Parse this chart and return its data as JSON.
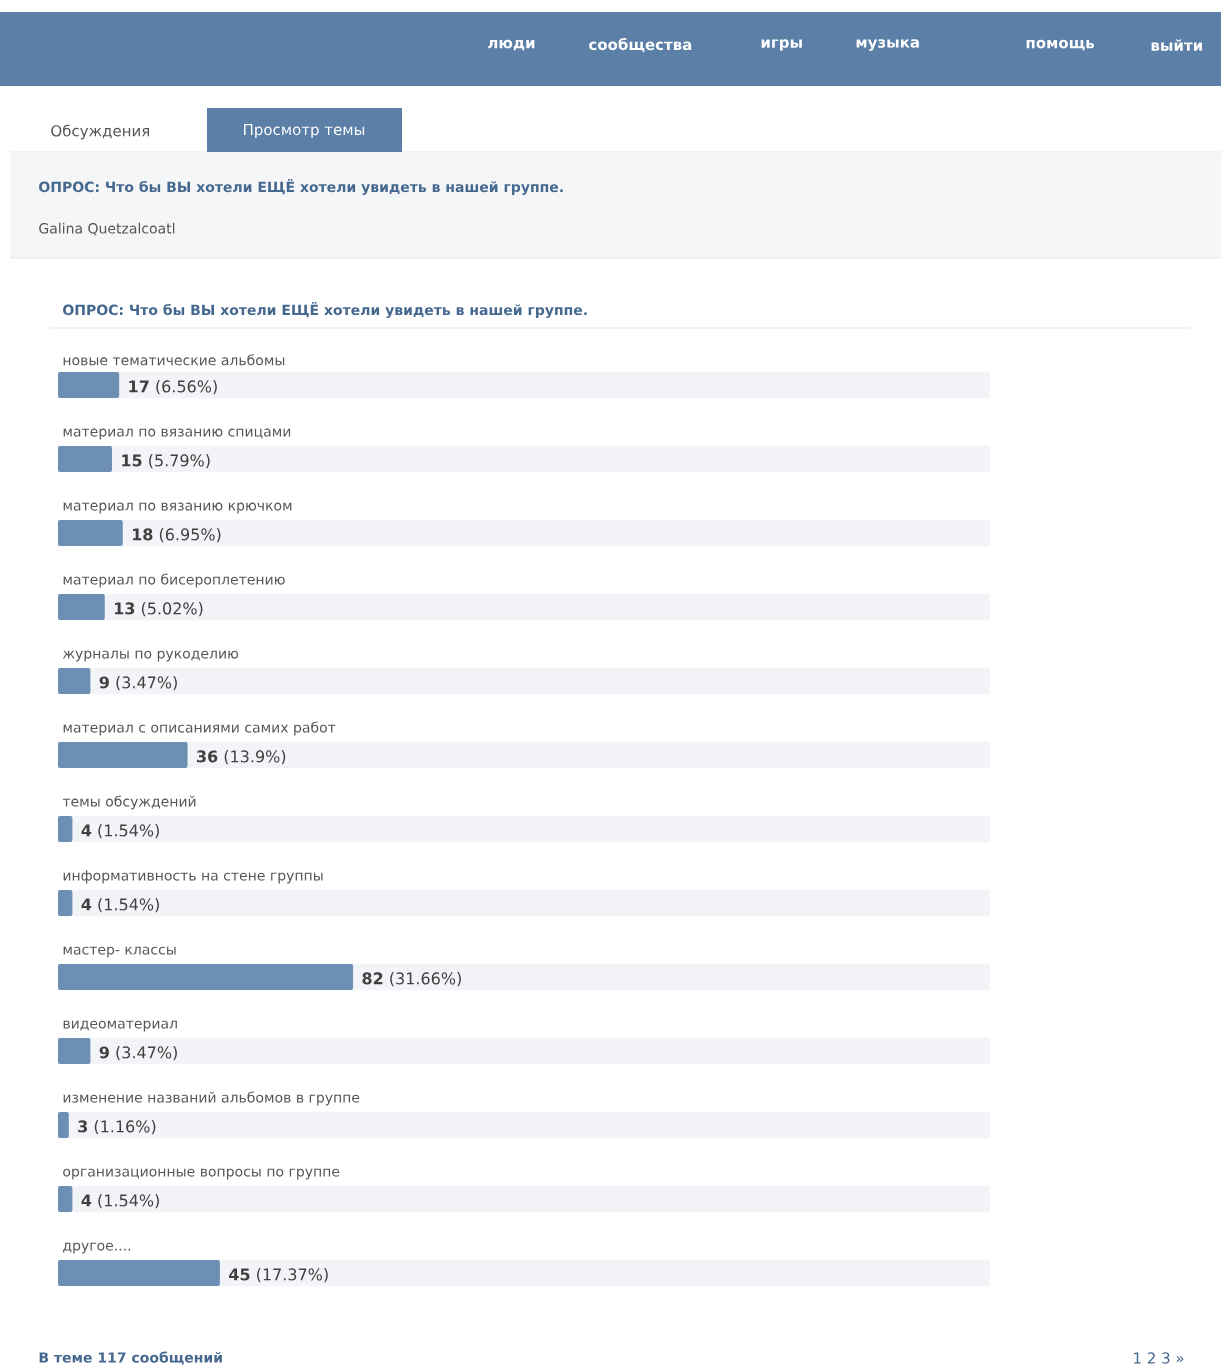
{
  "chart_data": {
    "type": "bar",
    "orientation": "horizontal",
    "title": "ОПРОС: Что бы ВЫ хотели ЕЩЁ хотели увидеть в нашей группе.",
    "categories": [
      "новые тематические альбомы",
      "материал по вязанию спицами",
      "материал по вязанию крючком",
      "материал по бисероплетению",
      "журналы по рукоделию",
      "материал с описаниями самих работ",
      "темы обсуждений",
      "информативность на стене группы",
      "мастер- классы",
      "видеоматериал",
      "изменение названий альбомов в группе",
      "организационные вопросы по группе",
      "другое...."
    ],
    "values": [
      17,
      15,
      18,
      13,
      9,
      36,
      4,
      4,
      82,
      9,
      3,
      4,
      45
    ],
    "value_labels": [
      "**17** (6.56%)",
      "**15** (5.79%)",
      "**18** (6.95%)",
      "**13** (5.02%)",
      "**9** (3.47%)",
      "**36** (13.9%)",
      "**4** (1.54%)",
      "**4** (1.54%)",
      "**82** (31.66%)",
      "**9** (3.47%)",
      "**3** (1.16%)",
      "**4** (1.54%)",
      "**45** (17.37%)"
    ],
    "color": "#6d8fb3",
    "annotations": [
      "люди",
      "сообщества",
      "игры",
      "музыка",
      "помощь",
      "выйти",
      "Обсуждения",
      "Просмотр темы",
      "ОПРОС: Что бы ВЫ хотели ЕЩЁ хотели увидеть в нашей группе.",
      "Galina Quetzalcoatl",
      "В теме 117 сообщений",
      "1 2 3 »"
    ]
  }
}
